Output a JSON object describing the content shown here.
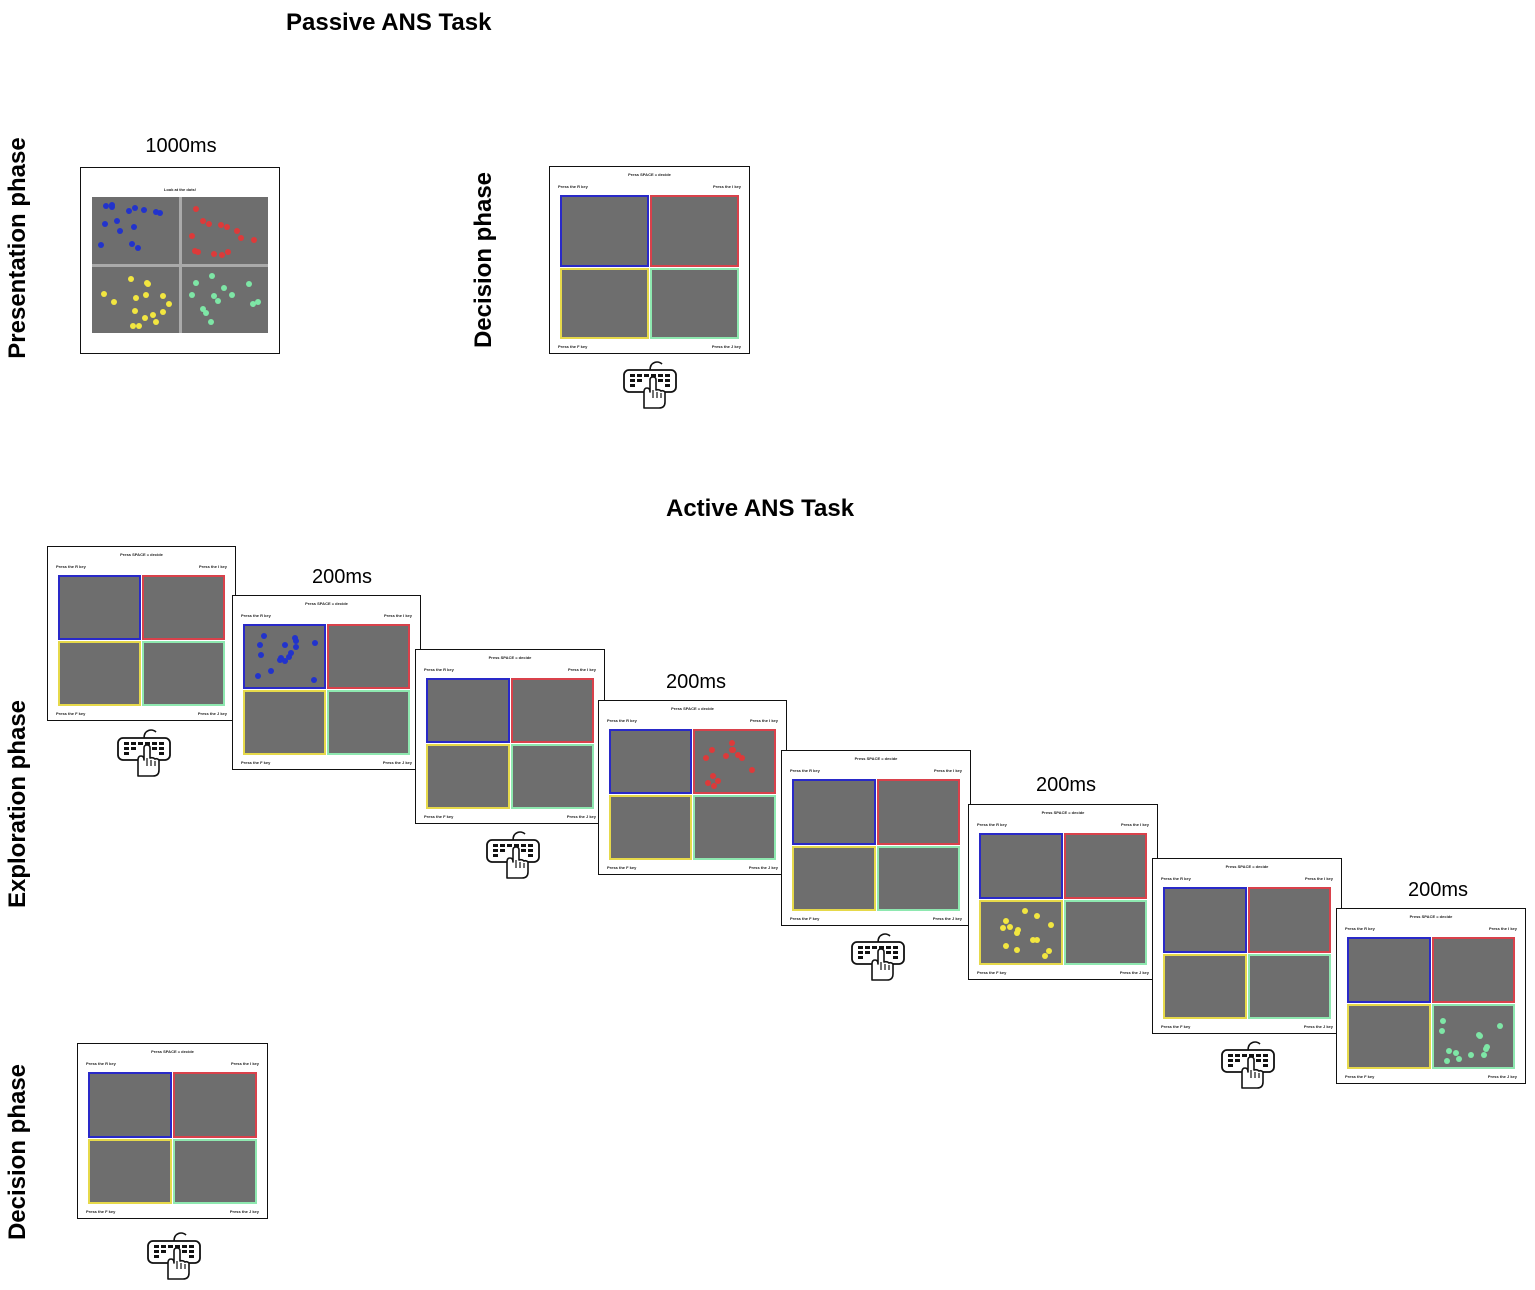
{
  "titles": {
    "passive": "Passive ANS Task",
    "active": "Active ANS Task"
  },
  "phases": {
    "presentation": "Presentation phase",
    "decision": "Decision phase",
    "exploration": "Exploration phase"
  },
  "timings": {
    "t1000": "1000ms",
    "t200": "200ms"
  },
  "screen_text": {
    "look": "Look at the dots!",
    "space": "Press SPACE = decide",
    "key_r": "Press the R key",
    "key_i": "Press the I key",
    "key_f": "Press the F key",
    "key_j": "Press the J key"
  },
  "colors": {
    "blue": "#2233cc",
    "red": "#dd3a3a",
    "yellow": "#f2e640",
    "green": "#7ee6a6",
    "quad_gray": "#6e6e6e"
  },
  "icons": {
    "keyboard": "keyboard-hand-icon"
  }
}
